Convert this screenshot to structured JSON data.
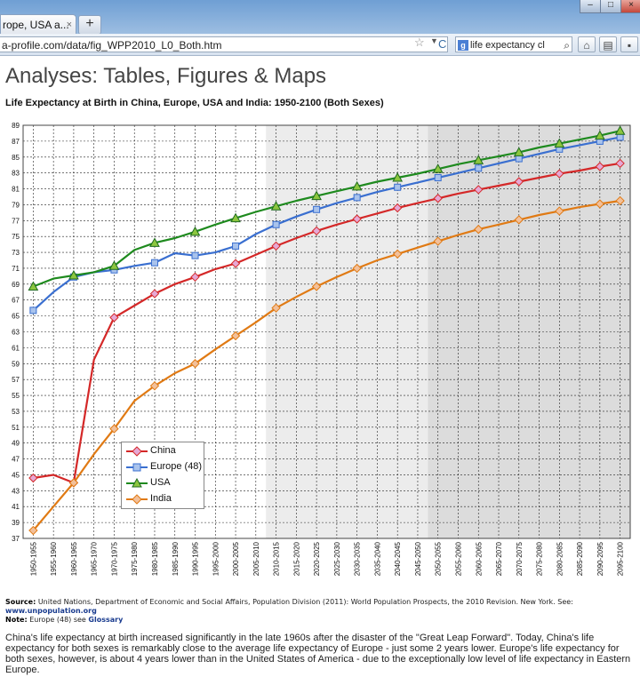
{
  "browser": {
    "tab_title": "rope, USA a...",
    "tab_close": "×",
    "new_tab": "+",
    "url": "a-profile.com/data/fig_WPP2010_L0_Both.htm",
    "search_text": "life expectancy cl",
    "icons": [
      "star-icon",
      "reload-icon",
      "google-icon",
      "search-icon",
      "home-icon",
      "bookmark-icon"
    ]
  },
  "page": {
    "heading": "Analyses: Tables, Figures & Maps",
    "chart_title": "Life Expectancy at Birth in China, Europe, USA and India: 1950-2100 (Both Sexes)",
    "source_label": "Source:",
    "source_text": "United Nations, Department of Economic and Social Affairs, Population Division (2011): World Population Prospects, the 2010 Revision. New York. See:",
    "source_link": "www.unpopulation.org",
    "note_label": "Note:",
    "note_text": "Europe (48) see",
    "note_link": "Glossary",
    "paragraph": "China's life expectancy at birth increased significantly in the late 1960s after the disaster of the \"Great Leap Forward\". Today, China's life expectancy for both sexes is remarkably close to the average life expectancy of Europe - just some 2 years lower. Europe's life expectancy for both sexes, however, is about 4 years lower than in the United States of America - due to the exceptionally low level of life expectancy in Eastern Europe."
  },
  "chart_data": {
    "type": "line",
    "title": "Life Expectancy at Birth in China, Europe, USA and India: 1950-2100 (Both Sexes)",
    "xlabel": "",
    "ylabel": "",
    "ylim": [
      37,
      89
    ],
    "yticks": [
      37,
      39,
      41,
      43,
      45,
      47,
      49,
      51,
      53,
      55,
      57,
      59,
      61,
      63,
      65,
      67,
      69,
      71,
      73,
      75,
      77,
      79,
      81,
      83,
      85,
      87,
      89
    ],
    "grid": true,
    "legend_position": "lower-left",
    "categories": [
      "1950-1955",
      "1955-1960",
      "1960-1965",
      "1965-1970",
      "1970-1975",
      "1975-1980",
      "1980-1985",
      "1985-1990",
      "1990-1995",
      "1995-2000",
      "2000-2005",
      "2005-2010",
      "2010-2015",
      "2015-2020",
      "2020-2025",
      "2025-2030",
      "2030-2035",
      "2035-2040",
      "2040-2045",
      "2045-2050",
      "2050-2055",
      "2055-2060",
      "2060-2065",
      "2065-2070",
      "2070-2075",
      "2075-2080",
      "2080-2085",
      "2085-2090",
      "2090-2095",
      "2095-2100"
    ],
    "projection_bands": [
      {
        "from": "2010-2015",
        "to": "2045-2050",
        "color": "#ececec"
      },
      {
        "from": "2050-2055",
        "to": "2095-2100",
        "color": "#dcdcdc"
      }
    ],
    "series": [
      {
        "name": "China",
        "color": "#d42828",
        "marker": "diamond",
        "marker_color": "#e6a8d4",
        "values": [
          44.6,
          45.0,
          44.0,
          59.5,
          64.8,
          66.3,
          67.8,
          69.0,
          69.9,
          70.9,
          71.6,
          72.7,
          73.8,
          74.8,
          75.7,
          76.5,
          77.2,
          77.9,
          78.6,
          79.2,
          79.8,
          80.4,
          80.9,
          81.4,
          81.9,
          82.4,
          82.9,
          83.3,
          83.8,
          84.2
        ]
      },
      {
        "name": "Europe (48)",
        "color": "#3a6fd0",
        "marker": "square",
        "marker_color": "#a9c3ec",
        "values": [
          65.7,
          68.0,
          69.9,
          70.5,
          70.8,
          71.3,
          71.7,
          72.9,
          72.6,
          73.0,
          73.8,
          75.3,
          76.5,
          77.5,
          78.4,
          79.2,
          79.9,
          80.6,
          81.2,
          81.8,
          82.4,
          83.0,
          83.6,
          84.2,
          84.8,
          85.4,
          86.0,
          86.5,
          87.0,
          87.5
        ]
      },
      {
        "name": "USA",
        "color": "#1e8a1e",
        "marker": "triangle",
        "marker_color": "#8cc63f",
        "values": [
          68.7,
          69.7,
          70.1,
          70.5,
          71.3,
          73.3,
          74.2,
          74.8,
          75.6,
          76.5,
          77.3,
          78.1,
          78.8,
          79.5,
          80.1,
          80.7,
          81.3,
          81.9,
          82.4,
          82.9,
          83.5,
          84.1,
          84.6,
          85.1,
          85.6,
          86.2,
          86.7,
          87.2,
          87.7,
          88.3
        ]
      },
      {
        "name": "India",
        "color": "#e07a14",
        "marker": "diamond",
        "marker_color": "#f2c09a",
        "values": [
          38.0,
          41.0,
          44.0,
          47.6,
          50.8,
          54.3,
          56.2,
          57.8,
          59.0,
          60.8,
          62.5,
          64.2,
          66.0,
          67.4,
          68.7,
          69.9,
          71.0,
          72.0,
          72.8,
          73.6,
          74.4,
          75.2,
          75.9,
          76.5,
          77.1,
          77.7,
          78.2,
          78.7,
          79.1,
          79.5
        ]
      }
    ]
  }
}
